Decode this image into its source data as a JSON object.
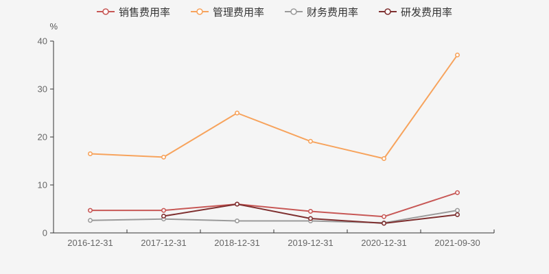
{
  "chart": {
    "background": "#f5f5f5",
    "axis_color": "#333333",
    "tick_label_color": "#666666",
    "unit_label_color": "#555555",
    "legend_text_color": "#333333"
  },
  "chart_data": {
    "type": "line",
    "title": "",
    "ylabel": "%",
    "xlabel": "",
    "ylim": [
      0,
      40
    ],
    "yticks": [
      0,
      10,
      20,
      30,
      40
    ],
    "grid": false,
    "legend_position": "top",
    "marker": "hollow-circle",
    "categories": [
      "2016-12-31",
      "2017-12-31",
      "2018-12-31",
      "2019-12-31",
      "2020-12-31",
      "2021-09-30"
    ],
    "series": [
      {
        "name": "销售费用率",
        "color": "#c75755",
        "values": [
          4.7,
          4.7,
          6.0,
          4.5,
          3.4,
          8.4
        ]
      },
      {
        "name": "管理费用率",
        "color": "#f7a35c",
        "values": [
          16.5,
          15.8,
          25.0,
          19.1,
          15.5,
          37.1
        ]
      },
      {
        "name": "财务费用率",
        "color": "#9a9a9a",
        "values": [
          2.6,
          2.9,
          2.5,
          2.5,
          2.1,
          4.7
        ]
      },
      {
        "name": "研发费用率",
        "color": "#7e2f2f",
        "values": [
          null,
          3.5,
          6.0,
          3.0,
          2.0,
          3.8
        ]
      }
    ]
  }
}
